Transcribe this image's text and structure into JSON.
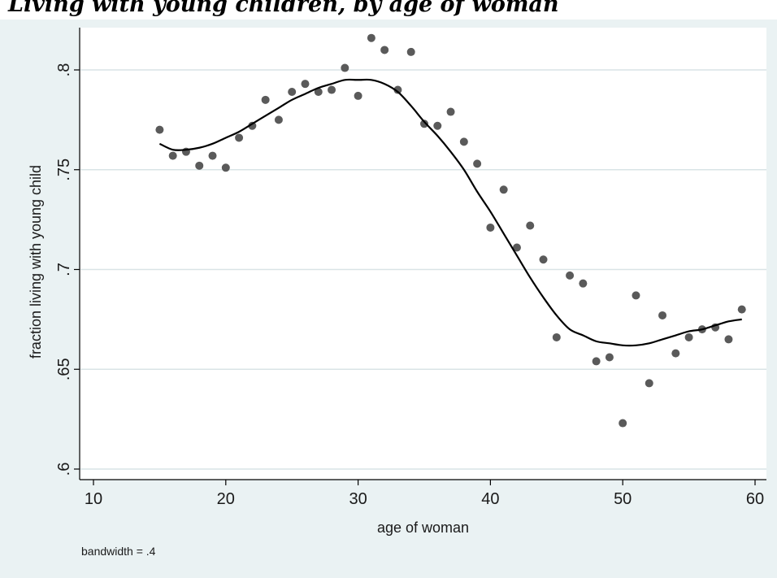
{
  "header": {
    "title": "Living with young children, by age of woman"
  },
  "chart_data": {
    "type": "scatter",
    "title": "",
    "xlabel": "age of woman",
    "ylabel": "fraction living with young child",
    "xlim": [
      10,
      60
    ],
    "ylim": [
      0.6,
      0.82
    ],
    "x_ticks": [
      10,
      20,
      30,
      40,
      50,
      60
    ],
    "x_tick_labels": [
      "10",
      "20",
      "30",
      "40",
      "50",
      "60"
    ],
    "y_ticks": [
      0.6,
      0.65,
      0.7,
      0.75,
      0.8
    ],
    "y_tick_labels": [
      ".6",
      ".65",
      ".7",
      ".75",
      ".8"
    ],
    "grid": "horizontal",
    "note": "bandwidth = .4",
    "colors": {
      "points": "#5a5a5a",
      "smooth_line": "#000000",
      "plot_background": "#ffffff",
      "outer_background": "#eaf2f3",
      "grid": "#d9e4e6"
    },
    "points": {
      "x": [
        15,
        16,
        17,
        18,
        19,
        20,
        21,
        22,
        23,
        24,
        25,
        26,
        27,
        28,
        29,
        30,
        31,
        32,
        33,
        34,
        35,
        36,
        37,
        38,
        39,
        40,
        41,
        42,
        43,
        44,
        45,
        46,
        47,
        48,
        49,
        50,
        51,
        52,
        53,
        54,
        55,
        56,
        57,
        58,
        59
      ],
      "y": [
        0.77,
        0.757,
        0.759,
        0.752,
        0.757,
        0.751,
        0.766,
        0.772,
        0.785,
        0.775,
        0.789,
        0.793,
        0.789,
        0.79,
        0.801,
        0.787,
        0.816,
        0.81,
        0.79,
        0.809,
        0.773,
        0.772,
        0.779,
        0.764,
        0.753,
        0.721,
        0.74,
        0.711,
        0.722,
        0.705,
        0.666,
        0.697,
        0.693,
        0.654,
        0.656,
        0.623,
        0.687,
        0.643,
        0.677,
        0.658,
        0.666,
        0.67,
        0.671,
        0.665,
        0.68
      ]
    },
    "smooth": {
      "x": [
        15,
        16,
        17,
        18,
        19,
        20,
        21,
        22,
        23,
        24,
        25,
        26,
        27,
        28,
        29,
        30,
        31,
        32,
        33,
        34,
        35,
        36,
        37,
        38,
        39,
        40,
        41,
        42,
        43,
        44,
        45,
        46,
        47,
        48,
        49,
        50,
        51,
        52,
        53,
        54,
        55,
        56,
        57,
        58,
        59
      ],
      "y": [
        0.763,
        0.76,
        0.76,
        0.761,
        0.763,
        0.766,
        0.769,
        0.773,
        0.777,
        0.781,
        0.785,
        0.788,
        0.791,
        0.793,
        0.795,
        0.795,
        0.795,
        0.793,
        0.789,
        0.782,
        0.774,
        0.767,
        0.759,
        0.75,
        0.739,
        0.729,
        0.718,
        0.707,
        0.696,
        0.686,
        0.677,
        0.67,
        0.667,
        0.664,
        0.663,
        0.662,
        0.662,
        0.663,
        0.665,
        0.667,
        0.669,
        0.67,
        0.672,
        0.674,
        0.675
      ]
    }
  }
}
